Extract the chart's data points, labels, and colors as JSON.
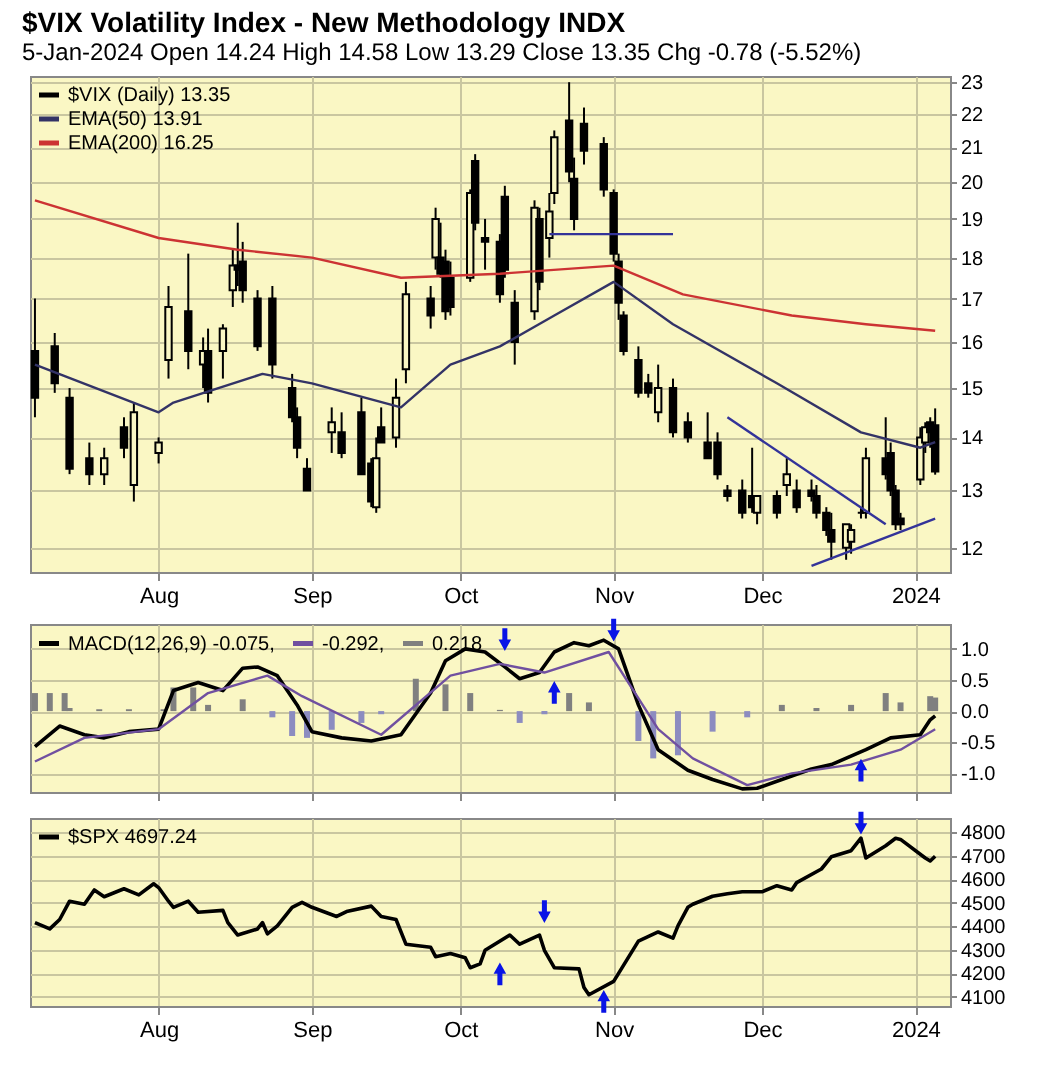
{
  "chart_data": [
    {
      "type": "candlestick",
      "title": "$VIX Volatility Index - New Methodology INDX",
      "subtitle": "5-Jan-2024 Open 14.24 High 14.58 Low 13.29 Close 13.35 Chg -0.78 (-5.52%)",
      "xlim": [
        "2023-07-06",
        "2024-01-08"
      ],
      "xticks": [
        {
          "value": "2023-08-01",
          "label": "Aug"
        },
        {
          "value": "2023-09-01",
          "label": "Sep"
        },
        {
          "value": "2023-10-01",
          "label": "Oct"
        },
        {
          "value": "2023-11-01",
          "label": "Nov"
        },
        {
          "value": "2023-12-01",
          "label": "Dec"
        },
        {
          "value": "2024-01-01",
          "label": "2024"
        }
      ],
      "ylim": [
        11.6,
        23.2
      ],
      "yticks": [
        12,
        13,
        14,
        15,
        16,
        17,
        18,
        19,
        20,
        21,
        22,
        23
      ],
      "log": "y",
      "grid": true,
      "legend": "top left",
      "series": [
        {
          "name": "$VIX (Daily) 13.35",
          "color": "#000000",
          "x": [
            "2023-07-07",
            "2023-07-11",
            "2023-07-14",
            "2023-07-18",
            "2023-07-21",
            "2023-07-25",
            "2023-07-27",
            "2023-08-01",
            "2023-08-03",
            "2023-08-07",
            "2023-08-10",
            "2023-08-11",
            "2023-08-14",
            "2023-08-16",
            "2023-08-17",
            "2023-08-18",
            "2023-08-21",
            "2023-08-24",
            "2023-08-28",
            "2023-08-29",
            "2023-08-31",
            "2023-09-05",
            "2023-09-07",
            "2023-09-11",
            "2023-09-13",
            "2023-09-14",
            "2023-09-15",
            "2023-09-18",
            "2023-09-20",
            "2023-09-25",
            "2023-09-26",
            "2023-09-27",
            "2023-09-28",
            "2023-09-29",
            "2023-10-03",
            "2023-10-04",
            "2023-10-06",
            "2023-10-09",
            "2023-10-10",
            "2023-10-12",
            "2023-10-16",
            "2023-10-17",
            "2023-10-19",
            "2023-10-20",
            "2023-10-23",
            "2023-10-24",
            "2023-10-26",
            "2023-10-30",
            "2023-11-01",
            "2023-11-02",
            "2023-11-03",
            "2023-11-06",
            "2023-11-08",
            "2023-11-10",
            "2023-11-13",
            "2023-11-16",
            "2023-11-20",
            "2023-11-22",
            "2023-11-24",
            "2023-11-27",
            "2023-11-29",
            "2023-11-30",
            "2023-12-04",
            "2023-12-06",
            "2023-12-08",
            "2023-12-11",
            "2023-12-12",
            "2023-12-14",
            "2023-12-15",
            "2023-12-18",
            "2023-12-19",
            "2023-12-21",
            "2023-12-22",
            "2023-12-26",
            "2023-12-27",
            "2023-12-28",
            "2023-12-29",
            "2024-01-02",
            "2024-01-03",
            "2024-01-04",
            "2024-01-05"
          ],
          "ohlc": [
            [
              15.8,
              17.0,
              14.4,
              14.8
            ],
            [
              15.9,
              16.2,
              14.9,
              15.1
            ],
            [
              14.8,
              15.0,
              13.3,
              13.4
            ],
            [
              13.6,
              13.9,
              13.1,
              13.3
            ],
            [
              13.3,
              13.8,
              13.1,
              13.6
            ],
            [
              14.2,
              14.4,
              13.6,
              13.8
            ],
            [
              13.1,
              14.7,
              12.8,
              14.5
            ],
            [
              13.7,
              14.0,
              13.5,
              13.9
            ],
            [
              15.6,
              17.3,
              15.2,
              16.8
            ],
            [
              16.7,
              18.1,
              15.4,
              15.8
            ],
            [
              15.5,
              16.1,
              15.0,
              15.8
            ],
            [
              15.8,
              16.3,
              14.7,
              14.9
            ],
            [
              15.8,
              16.4,
              15.2,
              16.3
            ],
            [
              17.2,
              18.2,
              16.8,
              17.8
            ],
            [
              17.8,
              18.9,
              17.3,
              17.7
            ],
            [
              17.9,
              18.4,
              16.9,
              17.2
            ],
            [
              17.0,
              17.2,
              15.8,
              15.9
            ],
            [
              17.0,
              17.3,
              15.2,
              15.5
            ],
            [
              15.0,
              15.3,
              14.3,
              14.4
            ],
            [
              14.4,
              14.6,
              13.6,
              13.8
            ],
            [
              13.4,
              13.6,
              13.0,
              13.0
            ],
            [
              14.1,
              14.6,
              13.7,
              14.3
            ],
            [
              14.1,
              14.5,
              13.6,
              13.7
            ],
            [
              14.5,
              14.8,
              13.3,
              13.3
            ],
            [
              13.5,
              13.6,
              12.7,
              12.8
            ],
            [
              12.7,
              14.0,
              12.6,
              13.6
            ],
            [
              14.2,
              14.6,
              13.9,
              13.9
            ],
            [
              14.0,
              15.2,
              13.8,
              14.8
            ],
            [
              15.4,
              17.4,
              15.1,
              17.1
            ],
            [
              17.0,
              17.3,
              16.3,
              16.6
            ],
            [
              18.0,
              19.3,
              17.7,
              19.0
            ],
            [
              18.0,
              18.9,
              17.5,
              17.6
            ],
            [
              17.9,
              18.2,
              16.5,
              16.7
            ],
            [
              17.5,
              17.9,
              16.6,
              16.8
            ],
            [
              17.5,
              19.8,
              17.4,
              19.7
            ],
            [
              20.6,
              20.8,
              18.7,
              18.9
            ],
            [
              18.5,
              19.0,
              17.7,
              18.4
            ],
            [
              18.4,
              18.6,
              16.9,
              17.1
            ],
            [
              19.6,
              19.9,
              17.5,
              17.7
            ],
            [
              16.9,
              17.2,
              15.5,
              16.0
            ],
            [
              16.7,
              19.5,
              16.5,
              19.3
            ],
            [
              19.0,
              19.3,
              17.2,
              17.4
            ],
            [
              18.5,
              19.7,
              18.0,
              19.2
            ],
            [
              19.7,
              21.5,
              19.4,
              21.3
            ],
            [
              21.8,
              23.0,
              20.0,
              20.3
            ],
            [
              20.1,
              20.7,
              18.7,
              19.0
            ],
            [
              21.7,
              22.2,
              20.5,
              20.9
            ],
            [
              21.1,
              21.3,
              19.6,
              19.8
            ],
            [
              19.7,
              19.8,
              17.9,
              18.1
            ],
            [
              17.9,
              18.1,
              16.5,
              16.9
            ],
            [
              16.6,
              16.7,
              15.7,
              15.8
            ],
            [
              15.6,
              15.9,
              14.8,
              14.9
            ],
            [
              15.1,
              15.3,
              14.8,
              14.9
            ],
            [
              14.5,
              15.5,
              14.3,
              15.0
            ],
            [
              15.0,
              15.2,
              14.0,
              14.1
            ],
            [
              14.3,
              14.5,
              13.9,
              14.0
            ],
            [
              13.9,
              14.5,
              13.6,
              13.6
            ],
            [
              13.9,
              14.1,
              13.2,
              13.3
            ],
            [
              13.0,
              13.1,
              12.8,
              12.9
            ],
            [
              13.0,
              13.2,
              12.5,
              12.6
            ],
            [
              12.9,
              13.8,
              12.6,
              12.7
            ],
            [
              12.6,
              12.9,
              12.4,
              12.9
            ],
            [
              12.9,
              13.0,
              12.5,
              12.6
            ],
            [
              13.1,
              13.6,
              12.9,
              13.3
            ],
            [
              13.0,
              13.2,
              12.6,
              12.7
            ],
            [
              13.0,
              13.2,
              12.8,
              12.9
            ],
            [
              12.9,
              13.1,
              12.5,
              12.6
            ],
            [
              12.6,
              12.7,
              12.2,
              12.3
            ],
            [
              12.3,
              12.6,
              11.8,
              12.1
            ],
            [
              12.0,
              12.4,
              11.8,
              12.4
            ],
            [
              12.1,
              12.4,
              11.9,
              12.3
            ],
            [
              12.6,
              12.7,
              12.5,
              12.6
            ],
            [
              12.6,
              13.8,
              12.5,
              13.6
            ],
            [
              13.6,
              14.4,
              13.2,
              13.3
            ],
            [
              13.7,
              13.9,
              12.9,
              13.0
            ],
            [
              13.0,
              13.1,
              12.3,
              12.4
            ],
            [
              12.5,
              12.6,
              12.3,
              12.4
            ],
            [
              13.2,
              14.2,
              13.1,
              14.0
            ],
            [
              13.9,
              14.3,
              13.7,
              14.2
            ],
            [
              14.3,
              14.4,
              13.8,
              14.1
            ],
            [
              14.24,
              14.58,
              13.29,
              13.35
            ]
          ]
        },
        {
          "name": "EMA(50) 13.91",
          "type": "line",
          "color": "#333366",
          "x": [
            "2023-07-07",
            "2023-08-01",
            "2023-08-04",
            "2023-08-22",
            "2023-09-01",
            "2023-09-19",
            "2023-09-29",
            "2023-10-09",
            "2023-10-20",
            "2023-11-01",
            "2023-11-13",
            "2023-12-04",
            "2023-12-21",
            "2024-01-02",
            "2024-01-05"
          ],
          "values": [
            15.5,
            14.5,
            14.7,
            15.3,
            15.1,
            14.6,
            15.5,
            15.9,
            16.6,
            17.4,
            16.4,
            15.1,
            14.1,
            13.8,
            13.91
          ]
        },
        {
          "name": "EMA(200) 16.25",
          "type": "line",
          "color": "#cc3333",
          "x": [
            "2023-07-07",
            "2023-08-01",
            "2023-08-17",
            "2023-09-01",
            "2023-09-19",
            "2023-10-09",
            "2023-11-01",
            "2023-11-15",
            "2023-12-07",
            "2023-12-22",
            "2024-01-05"
          ],
          "values": [
            19.5,
            18.5,
            18.2,
            18.0,
            17.5,
            17.6,
            17.8,
            17.1,
            16.6,
            16.4,
            16.25
          ]
        },
        {
          "type": "line",
          "color": "#333399",
          "x": [
            "2023-10-19",
            "2023-11-13"
          ],
          "values": [
            18.6,
            18.6
          ]
        },
        {
          "type": "line",
          "color": "#333399",
          "x": [
            "2023-11-24",
            "2023-12-26"
          ],
          "values": [
            14.4,
            12.4
          ]
        },
        {
          "type": "line",
          "color": "#333399",
          "x": [
            "2023-12-11",
            "2024-01-05"
          ],
          "values": [
            11.7,
            12.5
          ]
        }
      ]
    },
    {
      "type": "line",
      "xlim": [
        "2023-07-06",
        "2024-01-08"
      ],
      "xticks": [
        {
          "value": "2023-08-01",
          "label": null
        },
        {
          "value": "2023-09-01",
          "label": null
        },
        {
          "value": "2023-10-01",
          "label": null
        },
        {
          "value": "2023-11-01",
          "label": null
        },
        {
          "value": "2023-12-01",
          "label": null
        },
        {
          "value": "2024-01-01",
          "label": null
        }
      ],
      "ylim": [
        -1.3,
        1.4
      ],
      "yticks": [
        {
          "value": 1,
          "label": "1.0"
        },
        {
          "value": 0.5,
          "label": "0.5"
        },
        {
          "value": 0,
          "label": "0.0"
        },
        {
          "value": -0.5,
          "label": "-0.5"
        },
        {
          "value": -1,
          "label": "-1.0"
        }
      ],
      "tick_labels": "y",
      "grid": true,
      "legend": "top left",
      "series": [
        {
          "name": "MACD(12,26,9) -0.075,",
          "color": "#000000",
          "x": [
            "2023-07-07",
            "2023-07-12",
            "2023-07-17",
            "2023-07-21",
            "2023-07-26",
            "2023-08-01",
            "2023-08-04",
            "2023-08-09",
            "2023-08-14",
            "2023-08-18",
            "2023-08-21",
            "2023-08-25",
            "2023-08-29",
            "2023-09-01",
            "2023-09-07",
            "2023-09-13",
            "2023-09-19",
            "2023-09-25",
            "2023-09-28",
            "2023-10-02",
            "2023-10-06",
            "2023-10-10",
            "2023-10-13",
            "2023-10-17",
            "2023-10-20",
            "2023-10-24",
            "2023-10-27",
            "2023-10-30",
            "2023-11-02",
            "2023-11-06",
            "2023-11-10",
            "2023-11-16",
            "2023-11-21",
            "2023-11-27",
            "2023-11-30",
            "2023-12-05",
            "2023-12-11",
            "2023-12-15",
            "2023-12-22",
            "2023-12-27",
            "2024-01-02",
            "2024-01-04",
            "2024-01-05"
          ],
          "values": [
            -0.57,
            -0.24,
            -0.38,
            -0.43,
            -0.33,
            -0.29,
            0.33,
            0.46,
            0.33,
            0.69,
            0.71,
            0.57,
            0.1,
            -0.33,
            -0.43,
            -0.48,
            -0.38,
            0.29,
            0.81,
            1.0,
            0.95,
            0.71,
            0.52,
            0.62,
            0.95,
            1.1,
            1.05,
            1.14,
            1.0,
            0.1,
            -0.62,
            -0.95,
            -1.1,
            -1.25,
            -1.24,
            -1.1,
            -0.93,
            -0.86,
            -0.62,
            -0.43,
            -0.38,
            -0.14,
            -0.075
          ]
        },
        {
          "name": "-0.292,",
          "color": "#7050a0",
          "x": [
            "2023-07-07",
            "2023-07-17",
            "2023-08-01",
            "2023-08-11",
            "2023-08-23",
            "2023-08-30",
            "2023-09-15",
            "2023-09-29",
            "2023-10-09",
            "2023-10-18",
            "2023-10-31",
            "2023-11-10",
            "2023-11-17",
            "2023-11-28",
            "2023-12-07",
            "2023-12-19",
            "2023-12-29",
            "2024-01-05"
          ],
          "values": [
            -0.81,
            -0.43,
            -0.29,
            0.29,
            0.57,
            0.24,
            -0.38,
            0.57,
            0.76,
            0.62,
            0.95,
            -0.29,
            -0.76,
            -1.19,
            -1.0,
            -0.86,
            -0.62,
            -0.292
          ]
        },
        {
          "name": "0.218",
          "type": "bar",
          "color": "#808080",
          "x": [
            "2023-07-07",
            "2023-07-10",
            "2023-07-13",
            "2023-07-14",
            "2023-07-20",
            "2023-07-26",
            "2023-08-02",
            "2023-08-04",
            "2023-08-08",
            "2023-08-11",
            "2023-08-18",
            "2023-08-24",
            "2023-08-28",
            "2023-08-31",
            "2023-09-05",
            "2023-09-11",
            "2023-09-15",
            "2023-09-22",
            "2023-09-28",
            "2023-10-03",
            "2023-10-09",
            "2023-10-13",
            "2023-10-18",
            "2023-10-23",
            "2023-10-27",
            "2023-11-06",
            "2023-11-09",
            "2023-11-14",
            "2023-11-21",
            "2023-11-28",
            "2023-12-05",
            "2023-12-12",
            "2023-12-19",
            "2023-12-26",
            "2023-12-29",
            "2024-01-04",
            "2024-01-05"
          ],
          "values": [
            0.29,
            0.29,
            0.29,
            0.05,
            0.03,
            0.03,
            0.03,
            0.38,
            0.38,
            0.1,
            0.19,
            -0.1,
            -0.4,
            -0.43,
            -0.3,
            -0.19,
            -0.05,
            0.52,
            0.43,
            0.29,
            0.02,
            -0.19,
            -0.05,
            0.29,
            0.14,
            -0.48,
            -0.76,
            -0.71,
            -0.33,
            -0.1,
            0.1,
            0.05,
            0.1,
            0.29,
            0.14,
            0.24,
            0.218
          ],
          "colors": [
            "#808080",
            "#808080",
            "#808080",
            "#808080",
            "#808080",
            "#808080",
            "#808080",
            "#808080",
            "#808080",
            "#808080",
            "#808080",
            "#8c8cc0",
            "#8c8cc0",
            "#8c8cc0",
            "#8c8cc0",
            "#8c8cc0",
            "#8c8cc0",
            "#808080",
            "#808080",
            "#808080",
            "#808080",
            "#8c8cc0",
            "#8c8cc0",
            "#808080",
            "#808080",
            "#8c8cc0",
            "#8c8cc0",
            "#8c8cc0",
            "#8c8cc0",
            "#8c8cc0",
            "#808080",
            "#808080",
            "#808080",
            "#808080",
            "#808080",
            "#808080",
            "#808080"
          ]
        }
      ]
    },
    {
      "type": "line",
      "xlim": [
        "2023-07-06",
        "2024-01-08"
      ],
      "xticks": [
        {
          "value": "2023-08-01",
          "label": "Aug"
        },
        {
          "value": "2023-09-01",
          "label": "Sep"
        },
        {
          "value": "2023-10-01",
          "label": "Oct"
        },
        {
          "value": "2023-11-01",
          "label": "Nov"
        },
        {
          "value": "2023-12-01",
          "label": "Dec"
        },
        {
          "value": "2024-01-01",
          "label": "2024"
        }
      ],
      "ylim": [
        4060,
        4860
      ],
      "yticks": [
        4100,
        4200,
        4300,
        4400,
        4500,
        4600,
        4700,
        4800
      ],
      "grid": true,
      "legend": "top left",
      "series": [
        {
          "name": "$SPX 4697.24",
          "color": "#000000",
          "x": [
            "2023-07-07",
            "2023-07-10",
            "2023-07-12",
            "2023-07-14",
            "2023-07-17",
            "2023-07-19",
            "2023-07-21",
            "2023-07-25",
            "2023-07-28",
            "2023-07-31",
            "2023-08-01",
            "2023-08-03",
            "2023-08-04",
            "2023-08-07",
            "2023-08-09",
            "2023-08-14",
            "2023-08-15",
            "2023-08-17",
            "2023-08-21",
            "2023-08-22",
            "2023-08-23",
            "2023-08-25",
            "2023-08-28",
            "2023-08-30",
            "2023-09-01",
            "2023-09-06",
            "2023-09-08",
            "2023-09-13",
            "2023-09-15",
            "2023-09-18",
            "2023-09-20",
            "2023-09-25",
            "2023-09-26",
            "2023-09-29",
            "2023-10-02",
            "2023-10-03",
            "2023-10-05",
            "2023-10-06",
            "2023-10-11",
            "2023-10-13",
            "2023-10-17",
            "2023-10-18",
            "2023-10-20",
            "2023-10-25",
            "2023-10-26",
            "2023-10-27",
            "2023-11-01",
            "2023-11-06",
            "2023-11-10",
            "2023-11-13",
            "2023-11-14",
            "2023-11-16",
            "2023-11-17",
            "2023-11-21",
            "2023-11-24",
            "2023-11-27",
            "2023-12-01",
            "2023-12-04",
            "2023-12-07",
            "2023-12-08",
            "2023-12-13",
            "2023-12-15",
            "2023-12-19",
            "2023-12-21",
            "2023-12-22",
            "2023-12-26",
            "2023-12-28",
            "2023-12-29",
            "2024-01-03",
            "2024-01-04",
            "2024-01-05"
          ],
          "values": [
            4415,
            4388,
            4428,
            4506,
            4493,
            4554,
            4525,
            4559,
            4533,
            4580,
            4564,
            4506,
            4480,
            4506,
            4459,
            4467,
            4415,
            4362,
            4388,
            4415,
            4367,
            4401,
            4480,
            4501,
            4480,
            4441,
            4462,
            4485,
            4441,
            4428,
            4323,
            4310,
            4270,
            4283,
            4265,
            4223,
            4239,
            4297,
            4362,
            4323,
            4362,
            4297,
            4223,
            4218,
            4139,
            4108,
            4165,
            4336,
            4375,
            4349,
            4401,
            4480,
            4493,
            4527,
            4538,
            4546,
            4546,
            4572,
            4554,
            4585,
            4643,
            4695,
            4721,
            4774,
            4690,
            4742,
            4774,
            4769,
            4690,
            4677,
            4697.24
          ]
        }
      ]
    }
  ]
}
